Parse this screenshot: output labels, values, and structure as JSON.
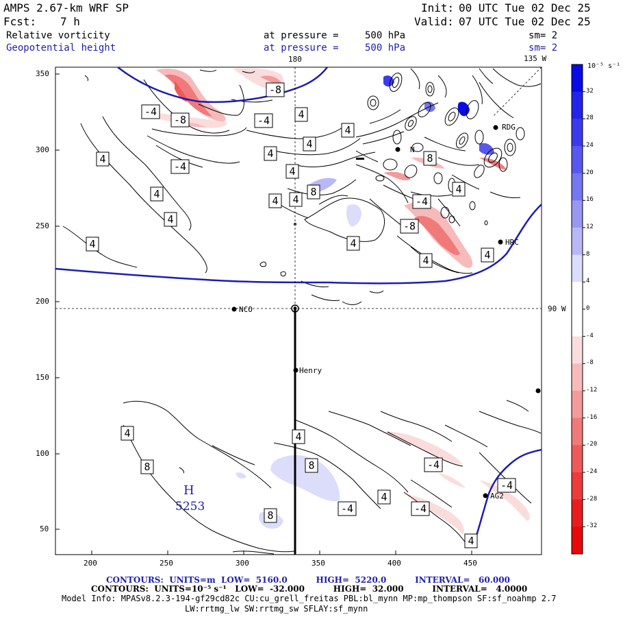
{
  "header": {
    "model_title": "AMPS 2.67-km WRF SP",
    "init_label": "Init:",
    "init_time": "00 UTC Tue 02 Dec 25",
    "fcst_label": "Fcst:",
    "fcst_value": "7 h",
    "valid_label": "Valid:",
    "valid_time": "07 UTC Tue 02 Dec 25"
  },
  "fields": [
    {
      "name": "Relative vorticity",
      "level_label": "at pressure =",
      "level": "500 hPa",
      "smooth": "sm= 2",
      "color": "#000000"
    },
    {
      "name": "Geopotential height",
      "level_label": "at pressure =",
      "level": "500 hPa",
      "smooth": "sm= 2",
      "color": "#1d1db0"
    }
  ],
  "map": {
    "meridian_180": "180",
    "meridian_135w": "135 W",
    "meridian_90w": "90 W",
    "x_ticks": [
      "200",
      "250",
      "300",
      "350",
      "400",
      "450"
    ],
    "y_ticks": [
      "350",
      "300",
      "250",
      "200",
      "150",
      "100",
      "50"
    ],
    "high_center": {
      "letter": "H",
      "value": "5253"
    },
    "stations": [
      {
        "name": "NCO"
      },
      {
        "name": "Henry"
      },
      {
        "name": "HRC"
      },
      {
        "name": "AG2"
      },
      {
        "name": "RDG"
      },
      {
        "name": "N"
      }
    ],
    "contour_labels": [
      "-8",
      "-4",
      "-8",
      "-4",
      "4",
      "4",
      "4",
      "4",
      "4",
      "4",
      "4",
      "4",
      "-4",
      "4",
      "4",
      "8",
      "4",
      "4",
      "8",
      "-8",
      "-4",
      "4",
      "4",
      "4",
      "4",
      "4",
      "8",
      "8",
      "8",
      "-4",
      "-4",
      "-4",
      "-4",
      "4",
      "4"
    ]
  },
  "colorbar": {
    "unit_label": "10⁻⁵ s⁻¹",
    "ticks": [
      "32",
      "28",
      "24",
      "20",
      "16",
      "12",
      "8",
      "4",
      "0",
      "-4",
      "-8",
      "-12",
      "-16",
      "-20",
      "-24",
      "-28",
      "-32"
    ],
    "colors": [
      "#0a0ae6",
      "#2323ea",
      "#3b3bec",
      "#5858ee",
      "#7676f0",
      "#9898f4",
      "#b8b8f7",
      "#dcdcfb",
      "#ffffff",
      "#ffffff",
      "#fbdcdc",
      "#f7baba",
      "#f49a9a",
      "#f07a7a",
      "#ee5a5a",
      "#ec3c3c",
      "#e81e1e",
      "#e60a0a"
    ]
  },
  "footer": {
    "contour1": "CONTOURS:  UNITS=m  LOW=  5160.0          HIGH=  5220.0          INTERVAL=   60.000",
    "contour2": "CONTOURS:  UNITS=10⁻⁵ s⁻¹   LOW=  -32.000          HIGH=  32.000          INTERVAL=   4.0000",
    "model_info": "Model Info: MPASv8.2.3-194-gf29cd82c CU:cu_grell_freitas PBL:bl_mynn MP:mp_thompson SF:sf_noahmp 2.7",
    "model_info2": "LW:rrtmg_lw SW:rrtmg_sw SFLAY:sf_mynn"
  }
}
